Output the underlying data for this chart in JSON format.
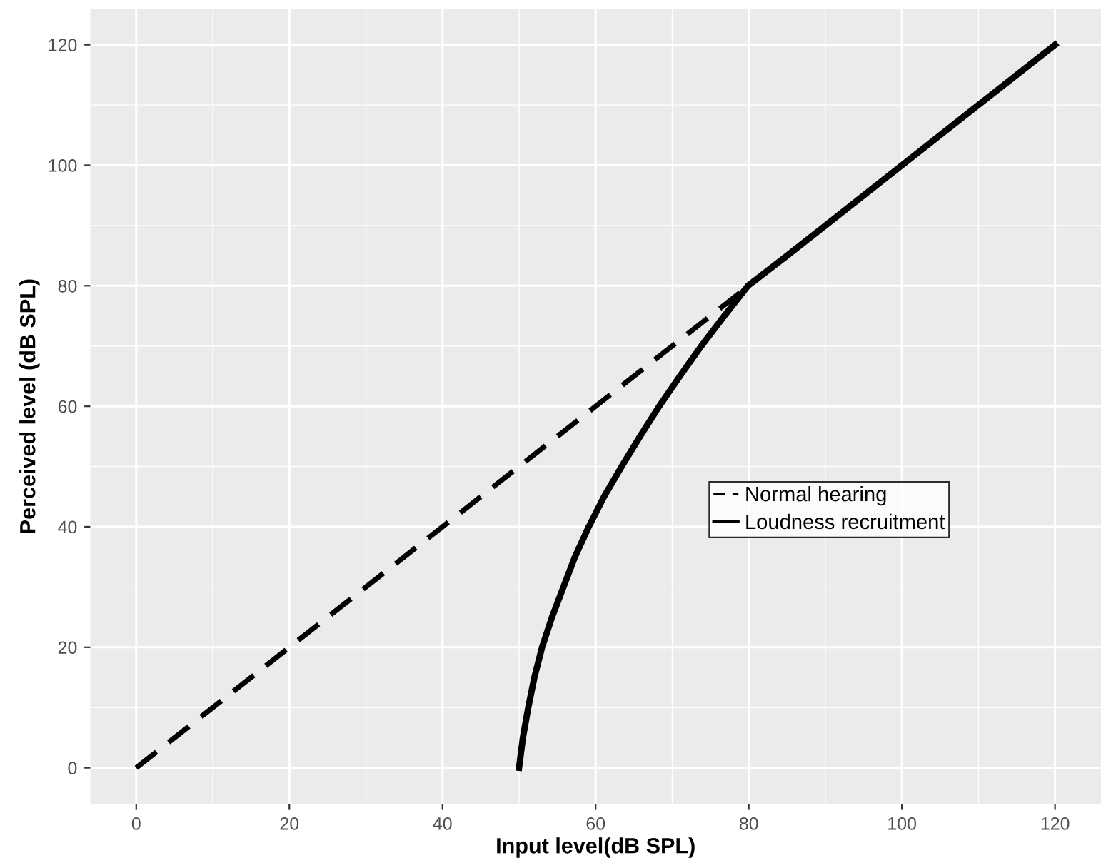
{
  "chart_data": {
    "type": "line",
    "xlabel": "Input level(dB SPL)",
    "ylabel": "Perceived level (dB SPL)",
    "series": [
      {
        "name": "Normal hearing",
        "color": "#000000",
        "line_style": "dashed",
        "x": [
          0,
          85
        ],
        "values": [
          0,
          85
        ]
      },
      {
        "name": "Loudness recruitment",
        "color": "#000000",
        "line_style": "solid",
        "x": [
          50,
          50.5,
          51.2,
          52,
          53,
          54.3,
          55.8,
          57.3,
          59.1,
          61.1,
          63.4,
          65.8,
          68.3,
          71,
          73.8,
          76.8,
          79.9,
          85,
          90,
          100,
          110,
          120
        ],
        "values": [
          0,
          5,
          10,
          15,
          20,
          25,
          30,
          35,
          40,
          45,
          50,
          55,
          60,
          65,
          70,
          75,
          80,
          85,
          90,
          100,
          110,
          120
        ]
      }
    ],
    "xlim": [
      -6,
      126
    ],
    "ylim": [
      -6,
      126
    ],
    "xticks": [
      0,
      20,
      40,
      60,
      80,
      100,
      120
    ],
    "yticks": [
      0,
      20,
      40,
      60,
      80,
      100,
      120
    ],
    "grid": true,
    "legend": "right"
  }
}
